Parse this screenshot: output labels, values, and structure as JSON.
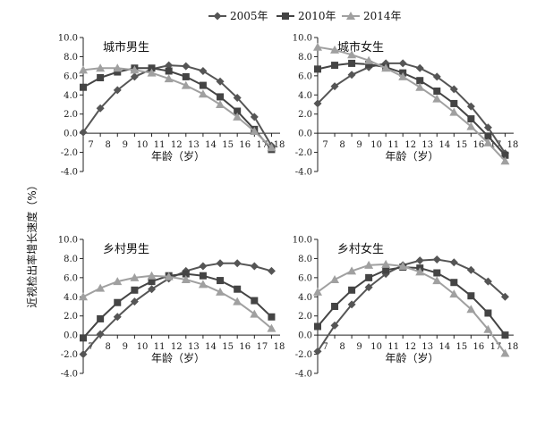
{
  "chart_data": {
    "type": "line",
    "ylabel": "近视检出率增长速度（%）",
    "xlabel": "年龄（岁）",
    "xlim": [
      6.5,
      18
    ],
    "ylim": [
      -4,
      10
    ],
    "x_ticks": [
      "7",
      "8",
      "9",
      "10",
      "11",
      "12",
      "13",
      "14",
      "15",
      "16",
      "17",
      "18"
    ],
    "y_ticks": [
      "-4.0",
      "-2.0",
      "0.0",
      "2.0",
      "4.0",
      "6.0",
      "8.0",
      "10.0"
    ],
    "legend_position": "top",
    "legend": [
      {
        "name": "2005年",
        "marker": "diamond",
        "color": "#555555"
      },
      {
        "name": "2010年",
        "marker": "square",
        "color": "#444444"
      },
      {
        "name": "2014年",
        "marker": "triangle",
        "color": "#a0a0a0"
      }
    ],
    "panels": [
      {
        "title": "城市男生",
        "x": [
          7,
          7.5,
          8,
          8.5,
          9,
          9.5,
          10,
          10.5,
          11,
          11.5,
          12,
          12.5,
          13,
          13.5,
          14,
          14.5,
          15,
          15.5,
          16,
          16.5,
          17,
          17.5
        ],
        "series": [
          {
            "name": "2005年",
            "x": [
              6.5,
              7.5,
              8.5,
              9.5,
              10.5,
              11.5,
              12.5,
              13.5,
              14.5,
              15.5,
              16.5,
              17.5
            ],
            "values": [
              0.1,
              2.6,
              4.5,
              5.9,
              6.7,
              7.1,
              7.0,
              6.5,
              5.4,
              3.7,
              1.7,
              -1.3
            ]
          },
          {
            "name": "2010年",
            "x": [
              6.5,
              7.5,
              8.5,
              9.5,
              10.5,
              11.5,
              12.5,
              13.5,
              14.5,
              15.5,
              16.5,
              17.5
            ],
            "values": [
              4.8,
              5.8,
              6.4,
              6.8,
              6.8,
              6.5,
              5.9,
              5.0,
              3.8,
              2.3,
              0.4,
              -1.7
            ]
          },
          {
            "name": "2014年",
            "x": [
              6.5,
              7.5,
              8.5,
              9.5,
              10.5,
              11.5,
              12.5,
              13.5,
              14.5,
              15.5,
              16.5,
              17.5
            ],
            "values": [
              6.6,
              6.8,
              6.8,
              6.6,
              6.3,
              5.7,
              5.0,
              4.1,
              3.0,
              1.7,
              0.2,
              -1.5
            ]
          }
        ]
      },
      {
        "title": "城市女生",
        "series": [
          {
            "name": "2005年",
            "x": [
              6.5,
              7.5,
              8.5,
              9.5,
              10.5,
              11.5,
              12.5,
              13.5,
              14.5,
              15.5,
              16.5,
              17.5
            ],
            "values": [
              3.1,
              4.9,
              6.1,
              6.9,
              7.3,
              7.3,
              6.8,
              5.9,
              4.6,
              2.8,
              0.6,
              -2.1
            ]
          },
          {
            "name": "2010年",
            "x": [
              6.5,
              7.5,
              8.5,
              9.5,
              10.5,
              11.5,
              12.5,
              13.5,
              14.5,
              15.5,
              16.5,
              17.5
            ],
            "values": [
              6.7,
              7.1,
              7.3,
              7.2,
              6.9,
              6.3,
              5.5,
              4.4,
              3.1,
              1.5,
              -0.3,
              -2.3
            ]
          },
          {
            "name": "2014年",
            "x": [
              6.5,
              7.5,
              8.5,
              9.5,
              10.5,
              11.5,
              12.5,
              13.5,
              14.5,
              15.5,
              16.5,
              17.5
            ],
            "values": [
              9.0,
              8.7,
              8.2,
              7.6,
              6.8,
              5.9,
              4.8,
              3.6,
              2.2,
              0.7,
              -1.0,
              -2.9
            ]
          }
        ]
      },
      {
        "title": "乡村男生",
        "series": [
          {
            "name": "2005年",
            "x": [
              6.5,
              7.5,
              8.5,
              9.5,
              10.5,
              11.5,
              12.5,
              13.5,
              14.5,
              15.5,
              16.5,
              17.5
            ],
            "values": [
              -2.0,
              0.1,
              1.9,
              3.5,
              4.8,
              5.9,
              6.7,
              7.2,
              7.5,
              7.5,
              7.2,
              6.7
            ]
          },
          {
            "name": "2010年",
            "x": [
              6.5,
              7.5,
              8.5,
              9.5,
              10.5,
              11.5,
              12.5,
              13.5,
              14.5,
              15.5,
              16.5,
              17.5
            ],
            "values": [
              -0.3,
              1.7,
              3.4,
              4.7,
              5.6,
              6.2,
              6.4,
              6.2,
              5.7,
              4.8,
              3.6,
              1.9
            ]
          },
          {
            "name": "2014年",
            "x": [
              6.5,
              7.5,
              8.5,
              9.5,
              10.5,
              11.5,
              12.5,
              13.5,
              14.5,
              15.5,
              16.5,
              17.5
            ],
            "values": [
              4.0,
              4.9,
              5.6,
              6.0,
              6.2,
              6.1,
              5.8,
              5.3,
              4.5,
              3.5,
              2.2,
              0.7
            ]
          }
        ]
      },
      {
        "title": "乡村女生",
        "series": [
          {
            "name": "2005年",
            "x": [
              6.5,
              7.5,
              8.5,
              9.5,
              10.5,
              11.5,
              12.5,
              13.5,
              14.5,
              15.5,
              16.5,
              17.5
            ],
            "values": [
              -1.7,
              1.0,
              3.2,
              5.0,
              6.4,
              7.3,
              7.8,
              7.9,
              7.6,
              6.8,
              5.6,
              4.0
            ]
          },
          {
            "name": "2010年",
            "x": [
              6.5,
              7.5,
              8.5,
              9.5,
              10.5,
              11.5,
              12.5,
              13.5,
              14.5,
              15.5,
              16.5,
              17.5
            ],
            "values": [
              0.9,
              3.0,
              4.7,
              6.0,
              6.8,
              7.1,
              7.0,
              6.5,
              5.5,
              4.1,
              2.3,
              0.0
            ]
          },
          {
            "name": "2014年",
            "x": [
              6.5,
              7.5,
              8.5,
              9.5,
              10.5,
              11.5,
              12.5,
              13.5,
              14.5,
              15.5,
              16.5,
              17.5
            ],
            "values": [
              4.5,
              5.8,
              6.7,
              7.3,
              7.4,
              7.2,
              6.6,
              5.7,
              4.3,
              2.7,
              0.6,
              -1.9
            ]
          }
        ]
      }
    ]
  }
}
